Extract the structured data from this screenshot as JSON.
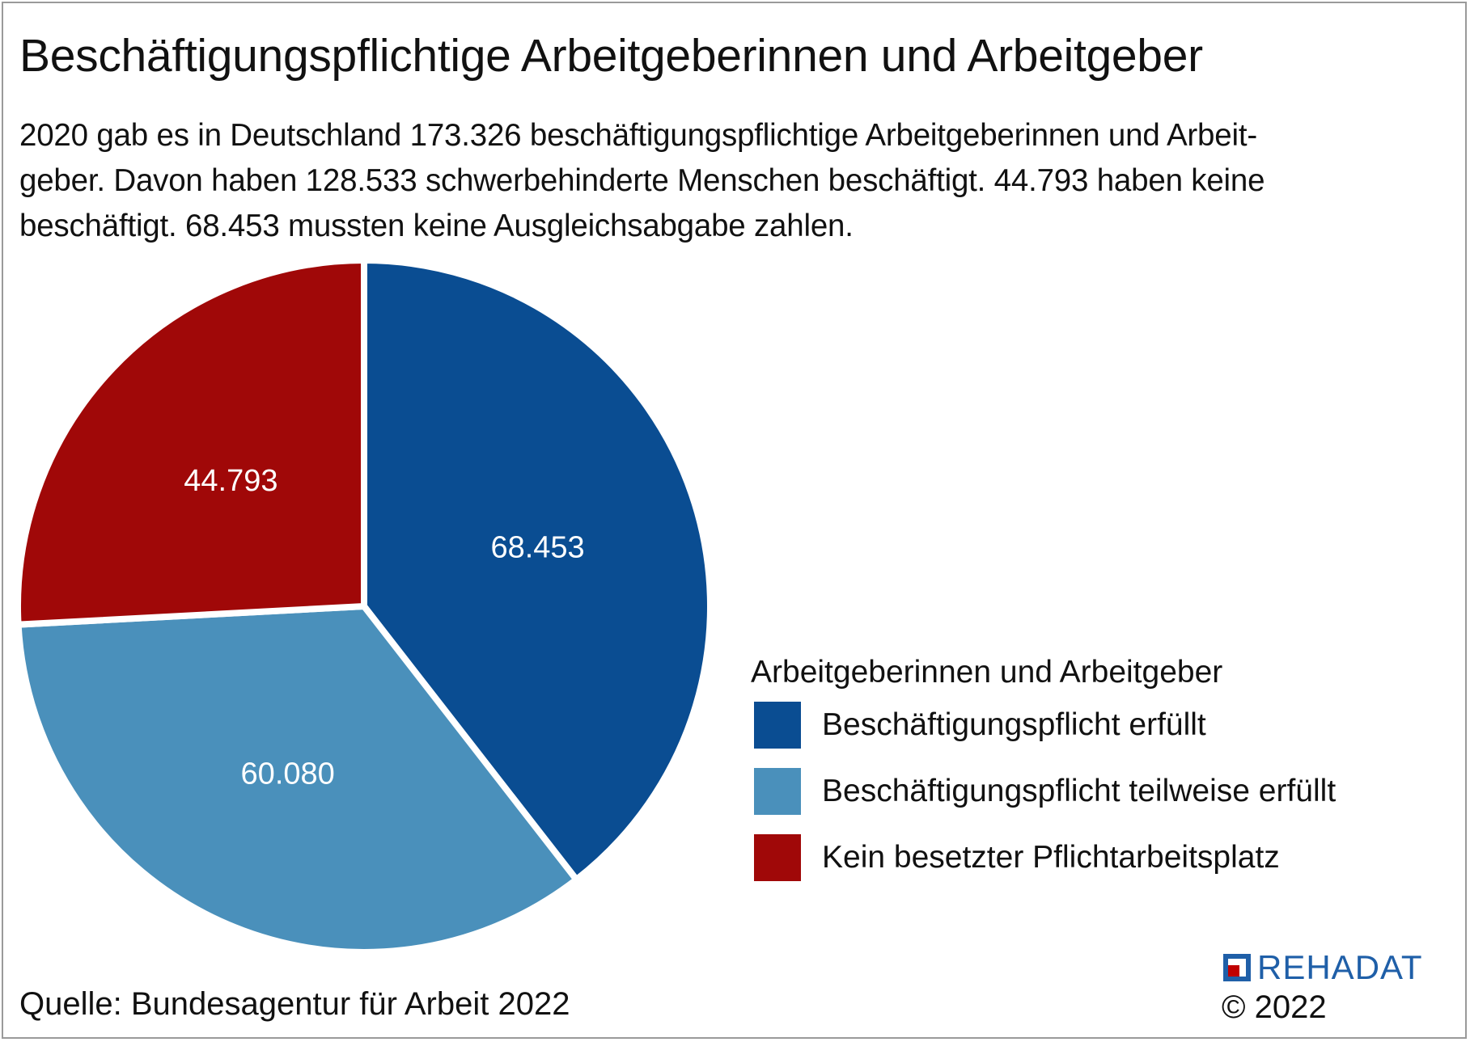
{
  "title": "Beschäftigungspflichtige Arbeitgeberinnen und Arbeitgeber",
  "subtitle_lines": [
    "2020 gab es in Deutschland 173.326 beschäftigungspflichtige Arbeitgeberinnen und Arbeit-",
    "geber. Davon haben 128.533 schwerbehinderte Menschen beschäftigt. 44.793 haben keine",
    "beschäftigt. 68.453 mussten keine Ausgleichsabgabe zahlen."
  ],
  "chart_data": {
    "type": "pie",
    "legend_title": "Arbeitgeberinnen und Arbeitgeber",
    "legend_position": "right",
    "slices": [
      {
        "label": "Beschäftigungspflicht erfüllt",
        "value": 68453,
        "value_label": "68.453",
        "color": "#0a4d92"
      },
      {
        "label": "Beschäftigungspflicht teilweise erfüllt",
        "value": 60080,
        "value_label": "60.080",
        "color": "#4a90bb"
      },
      {
        "label": "Kein besetzter Pflichtarbeitsplatz",
        "value": 44793,
        "value_label": "44.793",
        "color": "#a00808"
      }
    ]
  },
  "source": "Quelle: Bundesagentur für Arbeit 2022",
  "logo": {
    "text": "REHADAT",
    "color": "#1f5fa8",
    "accent": "#c00000"
  },
  "copyright": "© 2022"
}
